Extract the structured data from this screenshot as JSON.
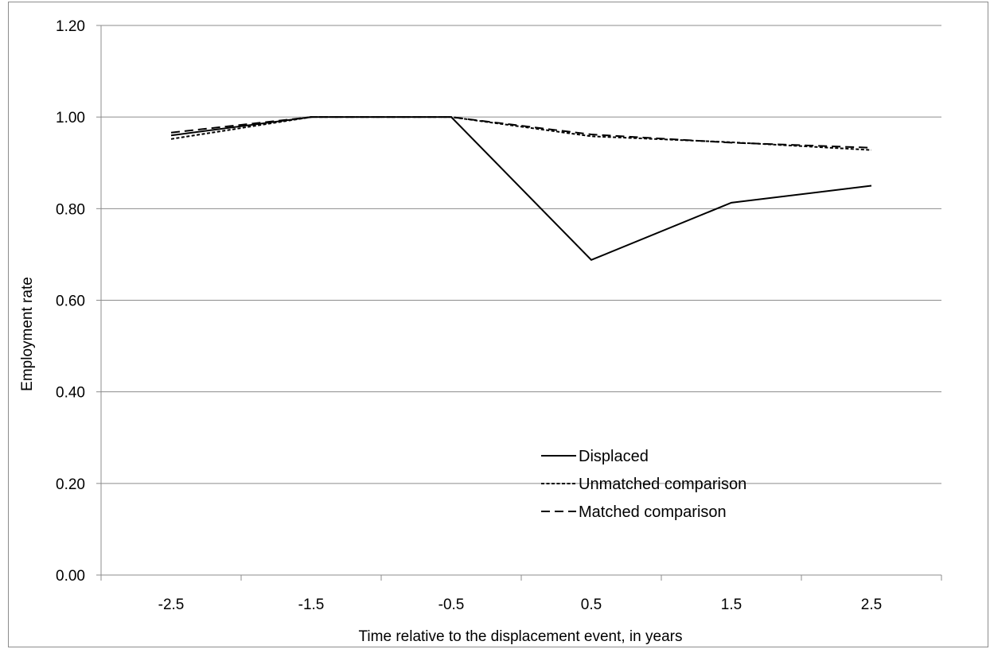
{
  "chart_data": {
    "type": "line",
    "title": "",
    "xlabel": "Time relative to the displacement event, in years",
    "ylabel": "Employment rate",
    "categories": [
      "-2.5",
      "-1.5",
      "-0.5",
      "0.5",
      "1.5",
      "2.5"
    ],
    "ylim": [
      0,
      1.2
    ],
    "ytick_values": [
      0,
      0.2,
      0.4,
      0.6,
      0.8,
      1.0,
      1.2
    ],
    "ytick_labels": [
      "0.00",
      "0.20",
      "0.40",
      "0.60",
      "0.80",
      "1.00",
      "1.20"
    ],
    "grid": "horizontal",
    "legend_position": "center-right",
    "series": [
      {
        "name": "Displaced",
        "values": [
          0.96,
          1.0,
          1.0,
          0.688,
          0.813,
          0.85
        ],
        "dash": "solid"
      },
      {
        "name": "Unmatched comparison",
        "values": [
          0.952,
          1.0,
          1.0,
          0.958,
          0.945,
          0.928
        ],
        "dash": "dotted"
      },
      {
        "name": "Matched comparison",
        "values": [
          0.966,
          1.0,
          1.0,
          0.962,
          0.944,
          0.933
        ],
        "dash": "dashed"
      }
    ],
    "colors": {
      "line": "#000000",
      "grid": "#8c8c8c",
      "axis": "#8c8c8c"
    }
  }
}
